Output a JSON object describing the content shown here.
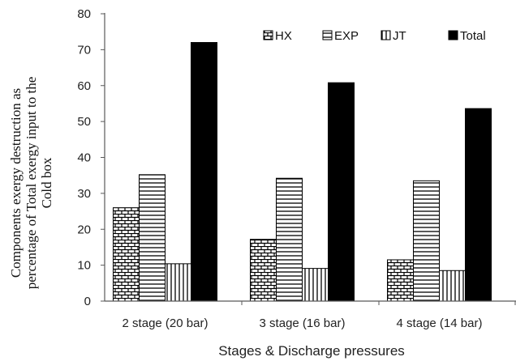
{
  "chart_data": {
    "type": "bar",
    "categories": [
      "2 stage (20 bar)",
      "3 stage (16 bar)",
      "4 stage (14 bar)"
    ],
    "series": [
      {
        "name": "HX",
        "values": [
          26.0,
          17.2,
          11.5
        ],
        "pattern": "brick"
      },
      {
        "name": "EXP",
        "values": [
          35.2,
          34.2,
          33.5
        ],
        "pattern": "horizontal"
      },
      {
        "name": "JT",
        "values": [
          10.4,
          9.1,
          8.5
        ],
        "pattern": "vertical"
      },
      {
        "name": "Total",
        "values": [
          72.0,
          60.8,
          53.6
        ],
        "pattern": "solid"
      }
    ],
    "title": "",
    "xlabel": "Stages & Discharge pressures",
    "ylabel_lines": [
      "Components exergy destruction as",
      "percentage of Total exergy input to the",
      "Cold box"
    ],
    "ylim": [
      0,
      80
    ],
    "yticks": [
      0,
      10,
      20,
      30,
      40,
      50,
      60,
      70,
      80
    ],
    "grid": false,
    "legend_position": "top-right",
    "colors": {
      "bar_fill": "#000000",
      "bar_stroke": "#000000",
      "background": "#ffffff",
      "axis": "#595959"
    }
  }
}
